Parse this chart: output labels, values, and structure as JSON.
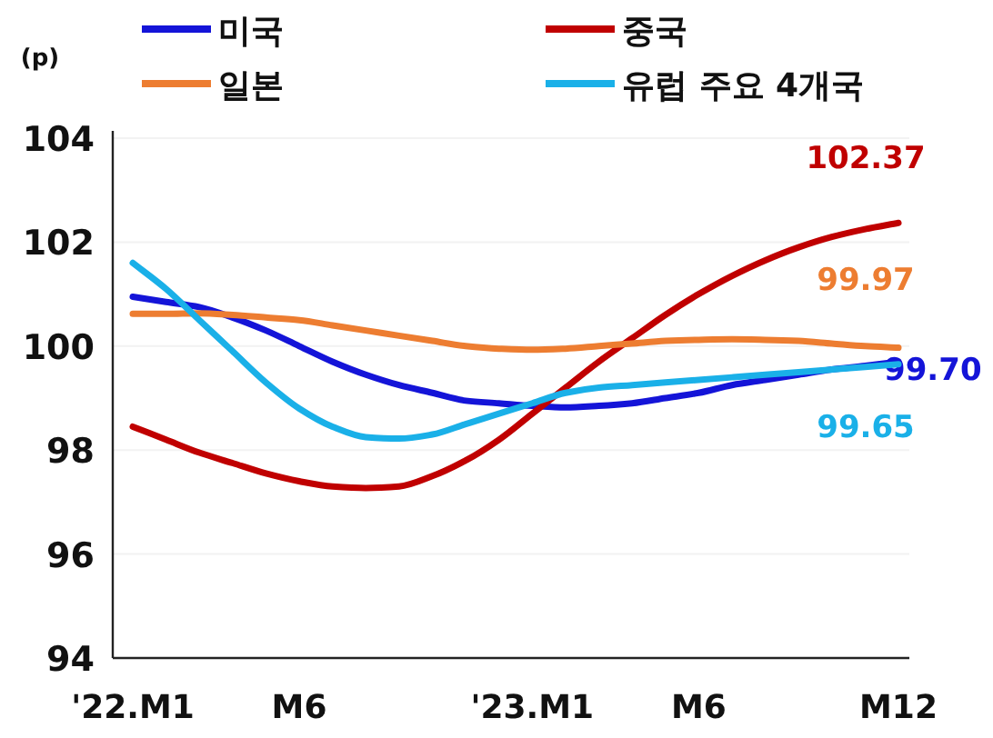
{
  "chart_data": {
    "type": "line",
    "ylabel": "(p)",
    "categories": [
      "'22.M1",
      null,
      null,
      null,
      null,
      "M6",
      null,
      null,
      null,
      null,
      null,
      null,
      "'23.M1",
      null,
      null,
      null,
      null,
      "M6",
      null,
      null,
      null,
      null,
      null,
      "M12"
    ],
    "series": [
      {
        "name": "미국",
        "color": "#1414d8",
        "values": [
          100.95,
          100.85,
          100.75,
          100.55,
          100.3,
          100.0,
          99.7,
          99.45,
          99.25,
          99.1,
          98.95,
          98.9,
          98.85,
          98.82,
          98.85,
          98.9,
          99.0,
          99.1,
          99.25,
          99.35,
          99.45,
          99.55,
          99.62,
          99.7
        ],
        "value_labels": [
          null,
          null,
          null,
          null,
          null,
          null,
          null,
          null,
          null,
          null,
          null,
          null,
          null,
          null,
          null,
          null,
          null,
          null,
          null,
          null,
          null,
          null,
          null,
          "99.70"
        ]
      },
      {
        "name": "중국",
        "color": "#c00000",
        "values": [
          98.45,
          98.2,
          97.95,
          97.75,
          97.55,
          97.4,
          97.3,
          97.27,
          97.3,
          97.5,
          97.8,
          98.2,
          98.7,
          99.2,
          99.7,
          100.15,
          100.6,
          101.0,
          101.35,
          101.65,
          101.9,
          102.1,
          102.25,
          102.37
        ],
        "value_labels": [
          null,
          null,
          null,
          null,
          null,
          null,
          null,
          null,
          null,
          null,
          null,
          null,
          null,
          null,
          null,
          null,
          null,
          null,
          null,
          null,
          null,
          null,
          null,
          "102.37"
        ]
      },
      {
        "name": "일본",
        "color": "#ed7d31",
        "values": [
          100.62,
          100.62,
          100.63,
          100.6,
          100.55,
          100.5,
          100.4,
          100.3,
          100.2,
          100.1,
          100.0,
          99.95,
          99.93,
          99.95,
          100.0,
          100.05,
          100.1,
          100.12,
          100.13,
          100.12,
          100.1,
          100.05,
          100.0,
          99.97
        ],
        "value_labels": [
          null,
          null,
          null,
          null,
          null,
          null,
          null,
          null,
          null,
          null,
          null,
          null,
          null,
          null,
          null,
          null,
          null,
          null,
          null,
          null,
          null,
          null,
          null,
          "99.97"
        ]
      },
      {
        "name": "유럽 주요 4개국",
        "color": "#1ab0e8",
        "values": [
          101.6,
          101.1,
          100.5,
          99.9,
          99.3,
          98.8,
          98.45,
          98.25,
          98.22,
          98.3,
          98.5,
          98.7,
          98.9,
          99.1,
          99.2,
          99.25,
          99.3,
          99.35,
          99.4,
          99.45,
          99.5,
          99.55,
          99.6,
          99.65
        ],
        "value_labels": [
          null,
          null,
          null,
          null,
          null,
          null,
          null,
          null,
          null,
          null,
          null,
          null,
          null,
          null,
          null,
          null,
          null,
          null,
          null,
          null,
          null,
          null,
          null,
          "99.65"
        ]
      }
    ],
    "ylim": [
      94,
      104
    ],
    "yticks": [
      94,
      96,
      98,
      100,
      102,
      104
    ],
    "grid": "y",
    "legend": "top",
    "line_style": "solid",
    "marker": "none"
  }
}
